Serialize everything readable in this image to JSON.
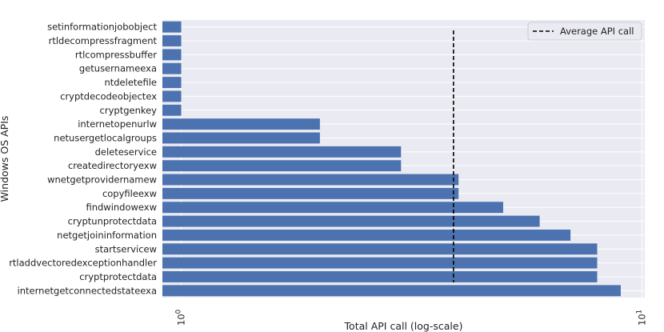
{
  "chart_data": {
    "type": "bar",
    "orientation": "horizontal",
    "xscale": "log",
    "xlabel": "Total API call (log-scale)",
    "ylabel": "Windows OS APIs",
    "xlim": [
      0.91,
      10.15
    ],
    "xticks": [
      {
        "base": "10",
        "exp": "0"
      },
      {
        "base": "10",
        "exp": "1"
      }
    ],
    "categories": [
      "setinformationjobobject",
      "rtldecompressfragment",
      "rtlcompressbuffer",
      "getusernameexa",
      "ntdeletefile",
      "cryptdecodeobjectex",
      "cryptgenkey",
      "internetopenurlw",
      "netusergetlocalgroups",
      "deleteservice",
      "createdirectoryexw",
      "wnetgetprovidernamew",
      "copyfileexw",
      "findwindowexw",
      "cryptunprotectdata",
      "netgetjoininformation",
      "startservicew",
      "rtladdvectoredexceptionhandler",
      "cryptprotectdata",
      "internetgetconnectedstateexa"
    ],
    "values": [
      1,
      1,
      1,
      1,
      1,
      1,
      1,
      2,
      2,
      3,
      3,
      4,
      4,
      5,
      6,
      7,
      8,
      8,
      8,
      9
    ],
    "average": 3.9,
    "legend": {
      "label": "Average API call",
      "position": "upper right"
    },
    "bar_color": "#4c72b0",
    "avg_line_color": "#000000",
    "background": "#eaeaf2",
    "grid": true
  }
}
